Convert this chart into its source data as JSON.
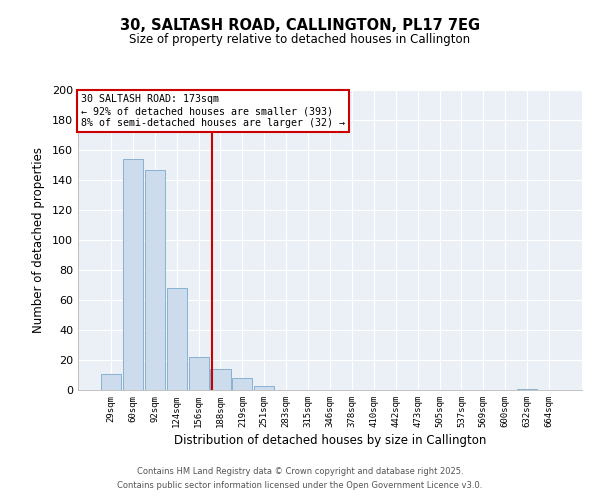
{
  "title": "30, SALTASH ROAD, CALLINGTON, PL17 7EG",
  "subtitle": "Size of property relative to detached houses in Callington",
  "xlabel": "Distribution of detached houses by size in Callington",
  "ylabel": "Number of detached properties",
  "bar_values": [
    11,
    154,
    147,
    68,
    22,
    14,
    8,
    3,
    0,
    0,
    0,
    0,
    0,
    0,
    0,
    0,
    0,
    0,
    0,
    1,
    0
  ],
  "bin_labels": [
    "29sqm",
    "60sqm",
    "92sqm",
    "124sqm",
    "156sqm",
    "188sqm",
    "219sqm",
    "251sqm",
    "283sqm",
    "315sqm",
    "346sqm",
    "378sqm",
    "410sqm",
    "442sqm",
    "473sqm",
    "505sqm",
    "537sqm",
    "569sqm",
    "600sqm",
    "632sqm",
    "664sqm"
  ],
  "bar_color": "#ccdcec",
  "bar_edge_color": "#7aaaca",
  "vline_x": 4.62,
  "vline_color": "#cc0000",
  "annotation_line1": "30 SALTASH ROAD: 173sqm",
  "annotation_line2": "← 92% of detached houses are smaller (393)",
  "annotation_line3": "8% of semi-detached houses are larger (32) →",
  "ylim": [
    0,
    200
  ],
  "yticks": [
    0,
    20,
    40,
    60,
    80,
    100,
    120,
    140,
    160,
    180,
    200
  ],
  "bg_color": "#eaf0f6",
  "footer1": "Contains HM Land Registry data © Crown copyright and database right 2025.",
  "footer2": "Contains public sector information licensed under the Open Government Licence v3.0."
}
